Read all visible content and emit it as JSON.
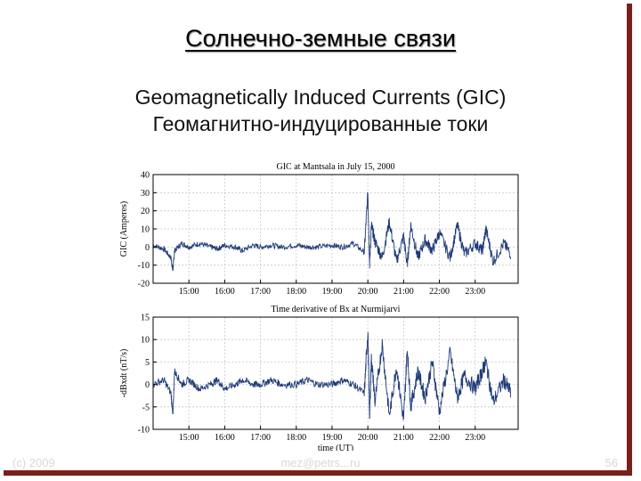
{
  "slide": {
    "title": "Солнечно-земные связи",
    "subtitle_en": "Geomagnetically Induced Currents (GIC)",
    "subtitle_ru": "Геомагнитно-индуцированные токи",
    "footer_left": "(c) 2009",
    "footer_center": "mez@petrs...ru",
    "footer_right": "56"
  },
  "colors": {
    "frame": "#7a1f1a",
    "trace": "#1f3b78",
    "axis": "#000000"
  },
  "chart_data": [
    {
      "type": "line",
      "title": "GIC at Mantsala in July 15, 2000",
      "xlabel": "",
      "ylabel": "GIC (Amperes)",
      "x_ticks": [
        "15:00",
        "16:00",
        "17:00",
        "18:00",
        "19:00",
        "20:00",
        "21:00",
        "22:00",
        "23:00"
      ],
      "xlim_hours": [
        14.0,
        24.2
      ],
      "ylim": [
        -20,
        40
      ],
      "y_ticks": [
        -20,
        -10,
        0,
        10,
        20,
        30,
        40
      ],
      "grid": true,
      "series": [
        {
          "x": [
            14.0,
            14.3,
            14.5,
            14.55,
            14.6,
            14.8,
            15.0,
            15.3,
            15.6,
            15.8,
            16.0,
            16.3,
            16.5,
            16.8,
            17.0,
            17.3,
            17.6,
            18.0,
            18.3,
            18.6,
            19.0,
            19.3,
            19.6,
            19.9,
            20.0,
            20.05,
            20.1,
            20.2,
            20.4,
            20.6,
            20.8,
            21.0,
            21.1,
            21.2,
            21.4,
            21.6,
            21.8,
            22.0,
            22.3,
            22.5,
            22.7,
            23.0,
            23.2,
            23.3,
            23.5,
            23.8,
            24.0
          ],
          "y": [
            1,
            -1,
            -6,
            -13,
            -2,
            2,
            0,
            2,
            0,
            -1,
            1,
            0,
            -2,
            1,
            0,
            1,
            0,
            1,
            0,
            0,
            1,
            0,
            2,
            -3,
            30,
            -9,
            12,
            3,
            -6,
            14,
            -8,
            6,
            -10,
            12,
            -6,
            4,
            -2,
            8,
            -6,
            12,
            -4,
            2,
            -2,
            10,
            -8,
            2,
            -4
          ],
          "noise": 3
        }
      ]
    },
    {
      "type": "line",
      "title": "Time derivative of Bx at Nurmijarvi",
      "xlabel": "time (UT)",
      "ylabel": "-dBxdt (nT/s)",
      "x_ticks": [
        "15:00",
        "16:00",
        "17:00",
        "18:00",
        "19:00",
        "20:00",
        "21:00",
        "22:00",
        "23:00"
      ],
      "xlim_hours": [
        14.0,
        24.2
      ],
      "ylim": [
        -10,
        15
      ],
      "y_ticks": [
        -10,
        -5,
        0,
        5,
        10,
        15
      ],
      "grid": true,
      "series": [
        {
          "x": [
            14.0,
            14.3,
            14.5,
            14.55,
            14.6,
            14.8,
            15.0,
            15.3,
            15.6,
            15.8,
            16.0,
            16.3,
            16.5,
            16.8,
            17.0,
            17.3,
            17.6,
            18.0,
            18.3,
            18.6,
            19.0,
            19.3,
            19.6,
            19.9,
            20.0,
            20.05,
            20.1,
            20.2,
            20.4,
            20.6,
            20.8,
            21.0,
            21.1,
            21.2,
            21.4,
            21.6,
            21.8,
            22.0,
            22.3,
            22.5,
            22.7,
            23.0,
            23.2,
            23.3,
            23.5,
            23.8,
            24.0
          ],
          "y": [
            0,
            1,
            -2,
            -7,
            3,
            0,
            1,
            -1,
            0,
            1,
            -1,
            0,
            1,
            0,
            0,
            1,
            0,
            0,
            1,
            0,
            0,
            1,
            0,
            -2,
            12,
            -7,
            6,
            -4,
            9,
            -7,
            4,
            -8,
            8,
            -5,
            3,
            -3,
            5,
            -6,
            7,
            -3,
            2,
            -1,
            3,
            5,
            -4,
            1,
            -2
          ],
          "noise": 1.6
        }
      ]
    }
  ]
}
